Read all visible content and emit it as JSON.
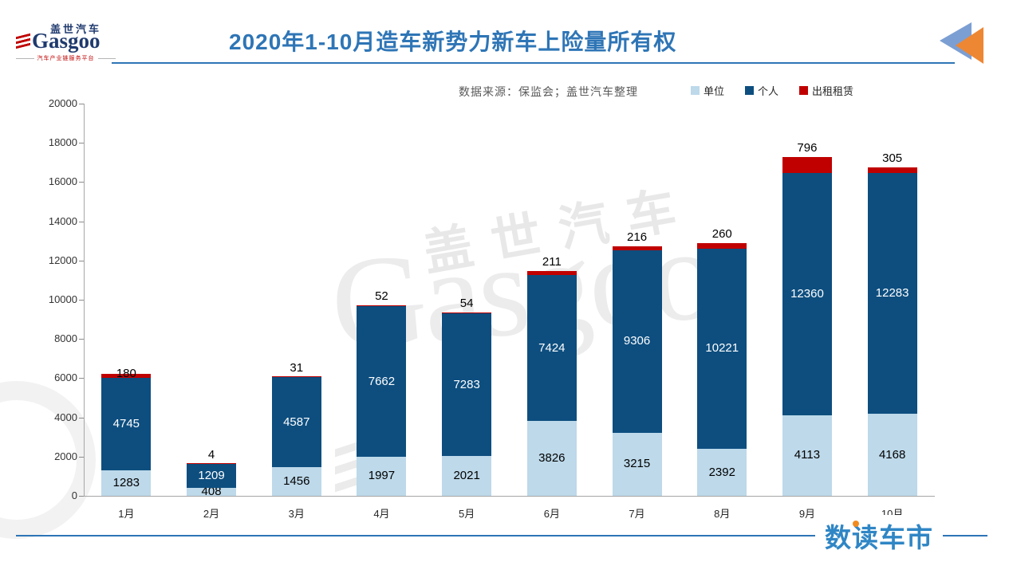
{
  "header": {
    "logo": {
      "cn": "盖世汽车",
      "en": "Gasgoo",
      "tagline": "汽车产业链服务平台"
    },
    "title": "2020年1-10月造车新势力新车上险量所有权"
  },
  "source_note": "数据来源：保监会；盖世汽车整理",
  "footer": {
    "brand": "数读车市"
  },
  "watermark": {
    "cn": "盖世汽车",
    "en": "Gasgoo"
  },
  "colors": {
    "unit_light_blue": "#BDD9EA",
    "personal_dark_blue": "#0D4E7F",
    "rental_red": "#C00000",
    "accent_blue": "#2E75B6",
    "brand_blue": "#2F86C5",
    "brand_orange": "#F08B1F",
    "icon_blue": "#7C9FD3",
    "icon_orange": "#ED8733"
  },
  "chart_data": {
    "type": "bar",
    "stacked": true,
    "title": "2020年1-10月造车新势力新车上险量所有权",
    "source_note": "数据来源：保监会；盖世汽车整理",
    "categories": [
      "1月",
      "2月",
      "3月",
      "4月",
      "5月",
      "6月",
      "7月",
      "8月",
      "9月",
      "10月"
    ],
    "series": [
      {
        "name": "单位",
        "color": "#BDD9EA",
        "label_color": "#000000",
        "values": [
          1283,
          408,
          1456,
          1997,
          2021,
          3826,
          3215,
          2392,
          4113,
          4168
        ]
      },
      {
        "name": "个人",
        "color": "#0D4E7F",
        "label_color": "#FFFFFF",
        "values": [
          4745,
          1209,
          4587,
          7662,
          7283,
          7424,
          9306,
          10221,
          12360,
          12283
        ]
      },
      {
        "name": "出租租赁",
        "color": "#C00000",
        "label_color": "#000000",
        "values": [
          180,
          4,
          31,
          52,
          54,
          211,
          216,
          260,
          796,
          305
        ]
      }
    ],
    "ylim": [
      0,
      20000
    ],
    "ytick_step": 2000,
    "grid": false,
    "legend_position": "top-right",
    "bar_value_labels": true
  }
}
